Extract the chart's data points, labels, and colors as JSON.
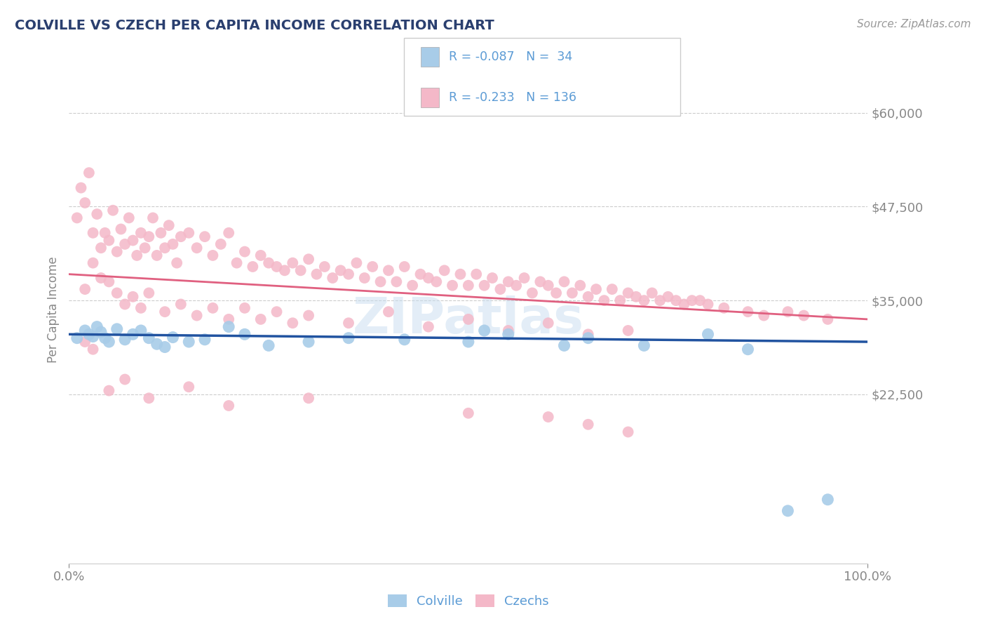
{
  "title": "COLVILLE VS CZECH PER CAPITA INCOME CORRELATION CHART",
  "source_text": "Source: ZipAtlas.com",
  "ylabel": "Per Capita Income",
  "xlim": [
    0.0,
    1.0
  ],
  "ylim": [
    0,
    67500
  ],
  "yticks": [
    22500,
    35000,
    47500,
    60000
  ],
  "ytick_labels": [
    "$22,500",
    "$35,000",
    "$47,500",
    "$60,000"
  ],
  "xtick_labels": [
    "0.0%",
    "100.0%"
  ],
  "grid_color": "#cccccc",
  "background_color": "#ffffff",
  "title_color": "#2a3f6f",
  "axis_color": "#5b9bd5",
  "watermark": "ZIPatlas",
  "colville_color": "#a8cce8",
  "czech_color": "#f4b8c8",
  "colville_line_color": "#2153a0",
  "czech_line_color": "#e06080",
  "colville_x": [
    0.01,
    0.02,
    0.025,
    0.03,
    0.035,
    0.04,
    0.045,
    0.05,
    0.06,
    0.07,
    0.08,
    0.09,
    0.1,
    0.11,
    0.12,
    0.13,
    0.15,
    0.17,
    0.2,
    0.22,
    0.25,
    0.3,
    0.35,
    0.42,
    0.5,
    0.52,
    0.55,
    0.62,
    0.65,
    0.72,
    0.8,
    0.85,
    0.9,
    0.95
  ],
  "colville_y": [
    30000,
    31000,
    30500,
    30200,
    31500,
    30800,
    30000,
    29500,
    31200,
    29800,
    30500,
    31000,
    30000,
    29200,
    28800,
    30100,
    29500,
    29800,
    31500,
    30500,
    29000,
    29500,
    30000,
    29800,
    29500,
    31000,
    30500,
    29000,
    30000,
    29000,
    30500,
    28500,
    7000,
    8500
  ],
  "czech_x": [
    0.01,
    0.015,
    0.02,
    0.025,
    0.03,
    0.035,
    0.04,
    0.045,
    0.05,
    0.055,
    0.06,
    0.065,
    0.07,
    0.075,
    0.08,
    0.085,
    0.09,
    0.095,
    0.1,
    0.105,
    0.11,
    0.115,
    0.12,
    0.125,
    0.13,
    0.135,
    0.14,
    0.15,
    0.16,
    0.17,
    0.18,
    0.19,
    0.2,
    0.21,
    0.22,
    0.23,
    0.24,
    0.25,
    0.26,
    0.27,
    0.28,
    0.29,
    0.3,
    0.31,
    0.32,
    0.33,
    0.34,
    0.35,
    0.36,
    0.37,
    0.38,
    0.39,
    0.4,
    0.41,
    0.42,
    0.43,
    0.44,
    0.45,
    0.46,
    0.47,
    0.48,
    0.49,
    0.5,
    0.51,
    0.52,
    0.53,
    0.54,
    0.55,
    0.56,
    0.57,
    0.58,
    0.59,
    0.6,
    0.61,
    0.62,
    0.63,
    0.64,
    0.65,
    0.66,
    0.67,
    0.68,
    0.69,
    0.7,
    0.71,
    0.72,
    0.73,
    0.74,
    0.75,
    0.76,
    0.77,
    0.78,
    0.79,
    0.8,
    0.82,
    0.85,
    0.87,
    0.9,
    0.92,
    0.95,
    0.02,
    0.03,
    0.04,
    0.05,
    0.06,
    0.07,
    0.08,
    0.09,
    0.1,
    0.12,
    0.14,
    0.16,
    0.18,
    0.2,
    0.22,
    0.24,
    0.26,
    0.28,
    0.3,
    0.35,
    0.4,
    0.45,
    0.5,
    0.55,
    0.6,
    0.65,
    0.7,
    0.02,
    0.03,
    0.05,
    0.07,
    0.1,
    0.15,
    0.2,
    0.3,
    0.5,
    0.6,
    0.65,
    0.7
  ],
  "czech_y": [
    46000,
    50000,
    48000,
    52000,
    44000,
    46500,
    42000,
    44000,
    43000,
    47000,
    41500,
    44500,
    42500,
    46000,
    43000,
    41000,
    44000,
    42000,
    43500,
    46000,
    41000,
    44000,
    42000,
    45000,
    42500,
    40000,
    43500,
    44000,
    42000,
    43500,
    41000,
    42500,
    44000,
    40000,
    41500,
    39500,
    41000,
    40000,
    39500,
    39000,
    40000,
    39000,
    40500,
    38500,
    39500,
    38000,
    39000,
    38500,
    40000,
    38000,
    39500,
    37500,
    39000,
    37500,
    39500,
    37000,
    38500,
    38000,
    37500,
    39000,
    37000,
    38500,
    37000,
    38500,
    37000,
    38000,
    36500,
    37500,
    37000,
    38000,
    36000,
    37500,
    37000,
    36000,
    37500,
    36000,
    37000,
    35500,
    36500,
    35000,
    36500,
    35000,
    36000,
    35500,
    35000,
    36000,
    35000,
    35500,
    35000,
    34500,
    35000,
    35000,
    34500,
    34000,
    33500,
    33000,
    33500,
    33000,
    32500,
    36500,
    40000,
    38000,
    37500,
    36000,
    34500,
    35500,
    34000,
    36000,
    33500,
    34500,
    33000,
    34000,
    32500,
    34000,
    32500,
    33500,
    32000,
    33000,
    32000,
    33500,
    31500,
    32500,
    31000,
    32000,
    30500,
    31000,
    29500,
    28500,
    23000,
    24500,
    22000,
    23500,
    21000,
    22000,
    20000,
    19500,
    18500,
    17500
  ]
}
